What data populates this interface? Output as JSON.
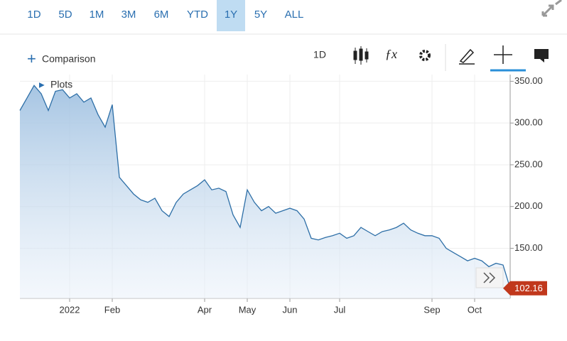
{
  "toolbar": {
    "ranges": [
      "1D",
      "5D",
      "1M",
      "3M",
      "6M",
      "YTD",
      "1Y",
      "5Y",
      "ALL"
    ],
    "selected": "1Y",
    "comparison": "Comparison",
    "interval": "1D",
    "plots": "Plots"
  },
  "chart_data": {
    "type": "area",
    "categories": [
      null,
      null,
      null,
      null,
      null,
      null,
      null,
      "2022",
      null,
      null,
      null,
      null,
      null,
      "Feb",
      null,
      null,
      null,
      null,
      null,
      null,
      null,
      null,
      null,
      null,
      null,
      null,
      "Apr",
      null,
      null,
      null,
      null,
      null,
      "May",
      null,
      null,
      null,
      null,
      null,
      "Jun",
      null,
      null,
      null,
      null,
      null,
      null,
      "Jul",
      null,
      null,
      null,
      null,
      null,
      null,
      null,
      null,
      null,
      null,
      null,
      null,
      "Sep",
      null,
      null,
      null,
      null,
      null,
      "Oct",
      null,
      null,
      null,
      null,
      null
    ],
    "series": [
      {
        "color": "#2e6fa7",
        "values": [
          315,
          330,
          345,
          335,
          315,
          338,
          340,
          330,
          335,
          325,
          330,
          310,
          295,
          322,
          235,
          225,
          215,
          208,
          205,
          210,
          195,
          188,
          205,
          215,
          220,
          225,
          232,
          220,
          222,
          218,
          190,
          175,
          220,
          205,
          195,
          200,
          192,
          195,
          198,
          195,
          185,
          162,
          160,
          163,
          165,
          168,
          162,
          165,
          175,
          170,
          165,
          170,
          172,
          175,
          180,
          172,
          168,
          165,
          165,
          162,
          150,
          145,
          140,
          135,
          138,
          135,
          128,
          132,
          130,
          102.16
        ]
      }
    ],
    "ylim": [
      90,
      358
    ],
    "yticks": [
      {
        "value": 150,
        "label": "150.00"
      },
      {
        "value": 200,
        "label": "200.00"
      },
      {
        "value": 250,
        "label": "250.00"
      },
      {
        "value": 300,
        "label": "300.00"
      },
      {
        "value": 350,
        "label": "350.00"
      }
    ],
    "grid": true
  }
}
